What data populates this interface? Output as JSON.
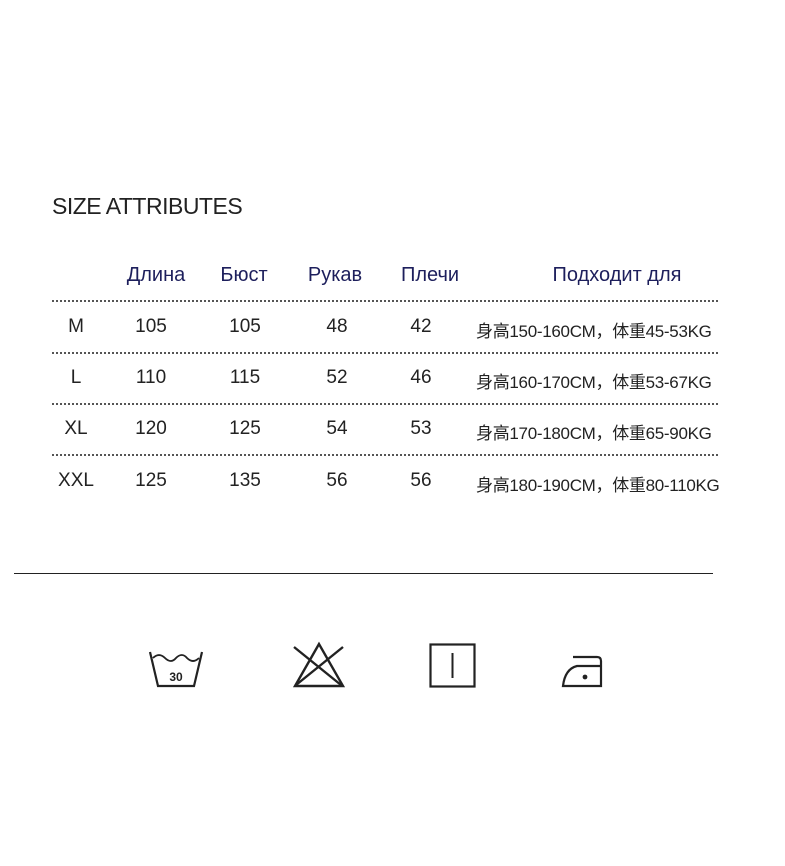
{
  "title": "SIZE ATTRIBUTES",
  "header_color": "#1d1f5c",
  "columns": [
    "",
    "Длина",
    "Бюст",
    "Рукав",
    "Плечи",
    "Подходит для"
  ],
  "rows": [
    {
      "size": "M",
      "length": "105",
      "bust": "105",
      "sleeve": "48",
      "shoulder": "42",
      "fit": "身高150-160CM，体重45-53KG"
    },
    {
      "size": "L",
      "length": "110",
      "bust": "115",
      "sleeve": "52",
      "shoulder": "46",
      "fit": "身高160-170CM，体重53-67KG"
    },
    {
      "size": "XL",
      "length": "120",
      "bust": "125",
      "sleeve": "54",
      "shoulder": "53",
      "fit": "身高170-180CM，体重65-90KG"
    },
    {
      "size": "XXL",
      "length": "125",
      "bust": "135",
      "sleeve": "56",
      "shoulder": "56",
      "fit": "身高180-190CM，体重80-110KG"
    }
  ],
  "care_icons": [
    {
      "icon": "wash-30-icon",
      "label": "30"
    },
    {
      "icon": "no-bleach-icon"
    },
    {
      "icon": "drip-dry-icon"
    },
    {
      "icon": "iron-low-icon"
    }
  ]
}
